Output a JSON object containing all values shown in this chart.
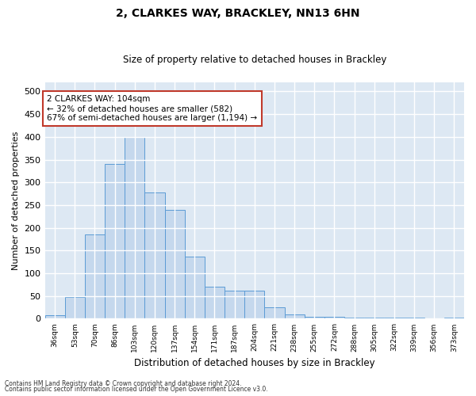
{
  "title1": "2, CLARKES WAY, BRACKLEY, NN13 6HN",
  "title2": "Size of property relative to detached houses in Brackley",
  "xlabel": "Distribution of detached houses by size in Brackley",
  "ylabel": "Number of detached properties",
  "categories": [
    "36sqm",
    "53sqm",
    "70sqm",
    "86sqm",
    "103sqm",
    "120sqm",
    "137sqm",
    "154sqm",
    "171sqm",
    "187sqm",
    "204sqm",
    "221sqm",
    "238sqm",
    "255sqm",
    "272sqm",
    "288sqm",
    "305sqm",
    "322sqm",
    "339sqm",
    "356sqm",
    "373sqm"
  ],
  "values": [
    8,
    47,
    185,
    340,
    400,
    278,
    240,
    137,
    70,
    62,
    62,
    25,
    10,
    5,
    4,
    3,
    3,
    2,
    2,
    0,
    3
  ],
  "bar_color": "#c5d8ed",
  "bar_edge_color": "#5b9bd5",
  "highlight_bar_index": 4,
  "highlight_bar_edge_color": "#c0392b",
  "annotation_line1": "2 CLARKES WAY: 104sqm",
  "annotation_line2": "← 32% of detached houses are smaller (582)",
  "annotation_line3": "67% of semi-detached houses are larger (1,194) →",
  "annotation_box_color": "white",
  "annotation_box_edge_color": "#c0392b",
  "ylim": [
    0,
    520
  ],
  "yticks": [
    0,
    50,
    100,
    150,
    200,
    250,
    300,
    350,
    400,
    450,
    500
  ],
  "background_color": "#dde8f3",
  "grid_color": "white",
  "footer_line1": "Contains HM Land Registry data © Crown copyright and database right 2024.",
  "footer_line2": "Contains public sector information licensed under the Open Government Licence v3.0."
}
